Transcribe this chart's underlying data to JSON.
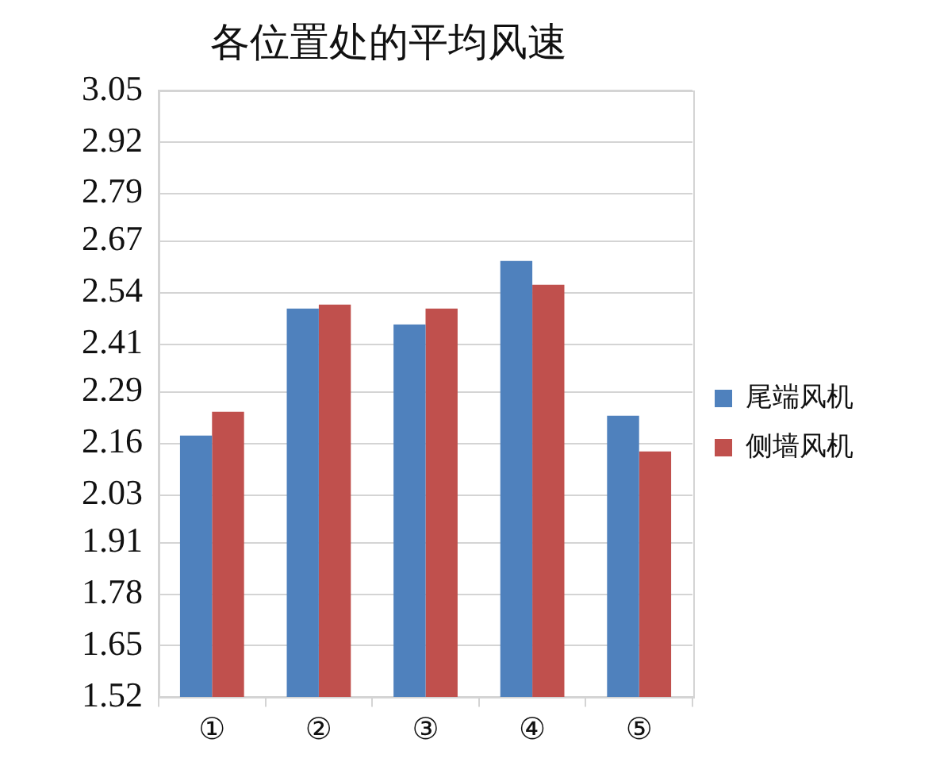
{
  "chart_data": {
    "type": "bar",
    "title": "各位置处的平均风速",
    "categories": [
      "①",
      "②",
      "③",
      "④",
      "⑤"
    ],
    "series": [
      {
        "name": "尾端风机",
        "color": "#4f81bd",
        "values": [
          2.18,
          2.5,
          2.46,
          2.62,
          2.23
        ]
      },
      {
        "name": "侧墙风机",
        "color": "#c0504d",
        "values": [
          2.24,
          2.51,
          2.5,
          2.56,
          2.14
        ]
      }
    ],
    "ylim": [
      1.52,
      3.05
    ],
    "yticks": [
      1.52,
      1.65,
      1.78,
      1.91,
      2.03,
      2.16,
      2.29,
      2.41,
      2.54,
      2.67,
      2.79,
      2.92,
      3.05
    ],
    "grid": "y",
    "legend": "right"
  }
}
